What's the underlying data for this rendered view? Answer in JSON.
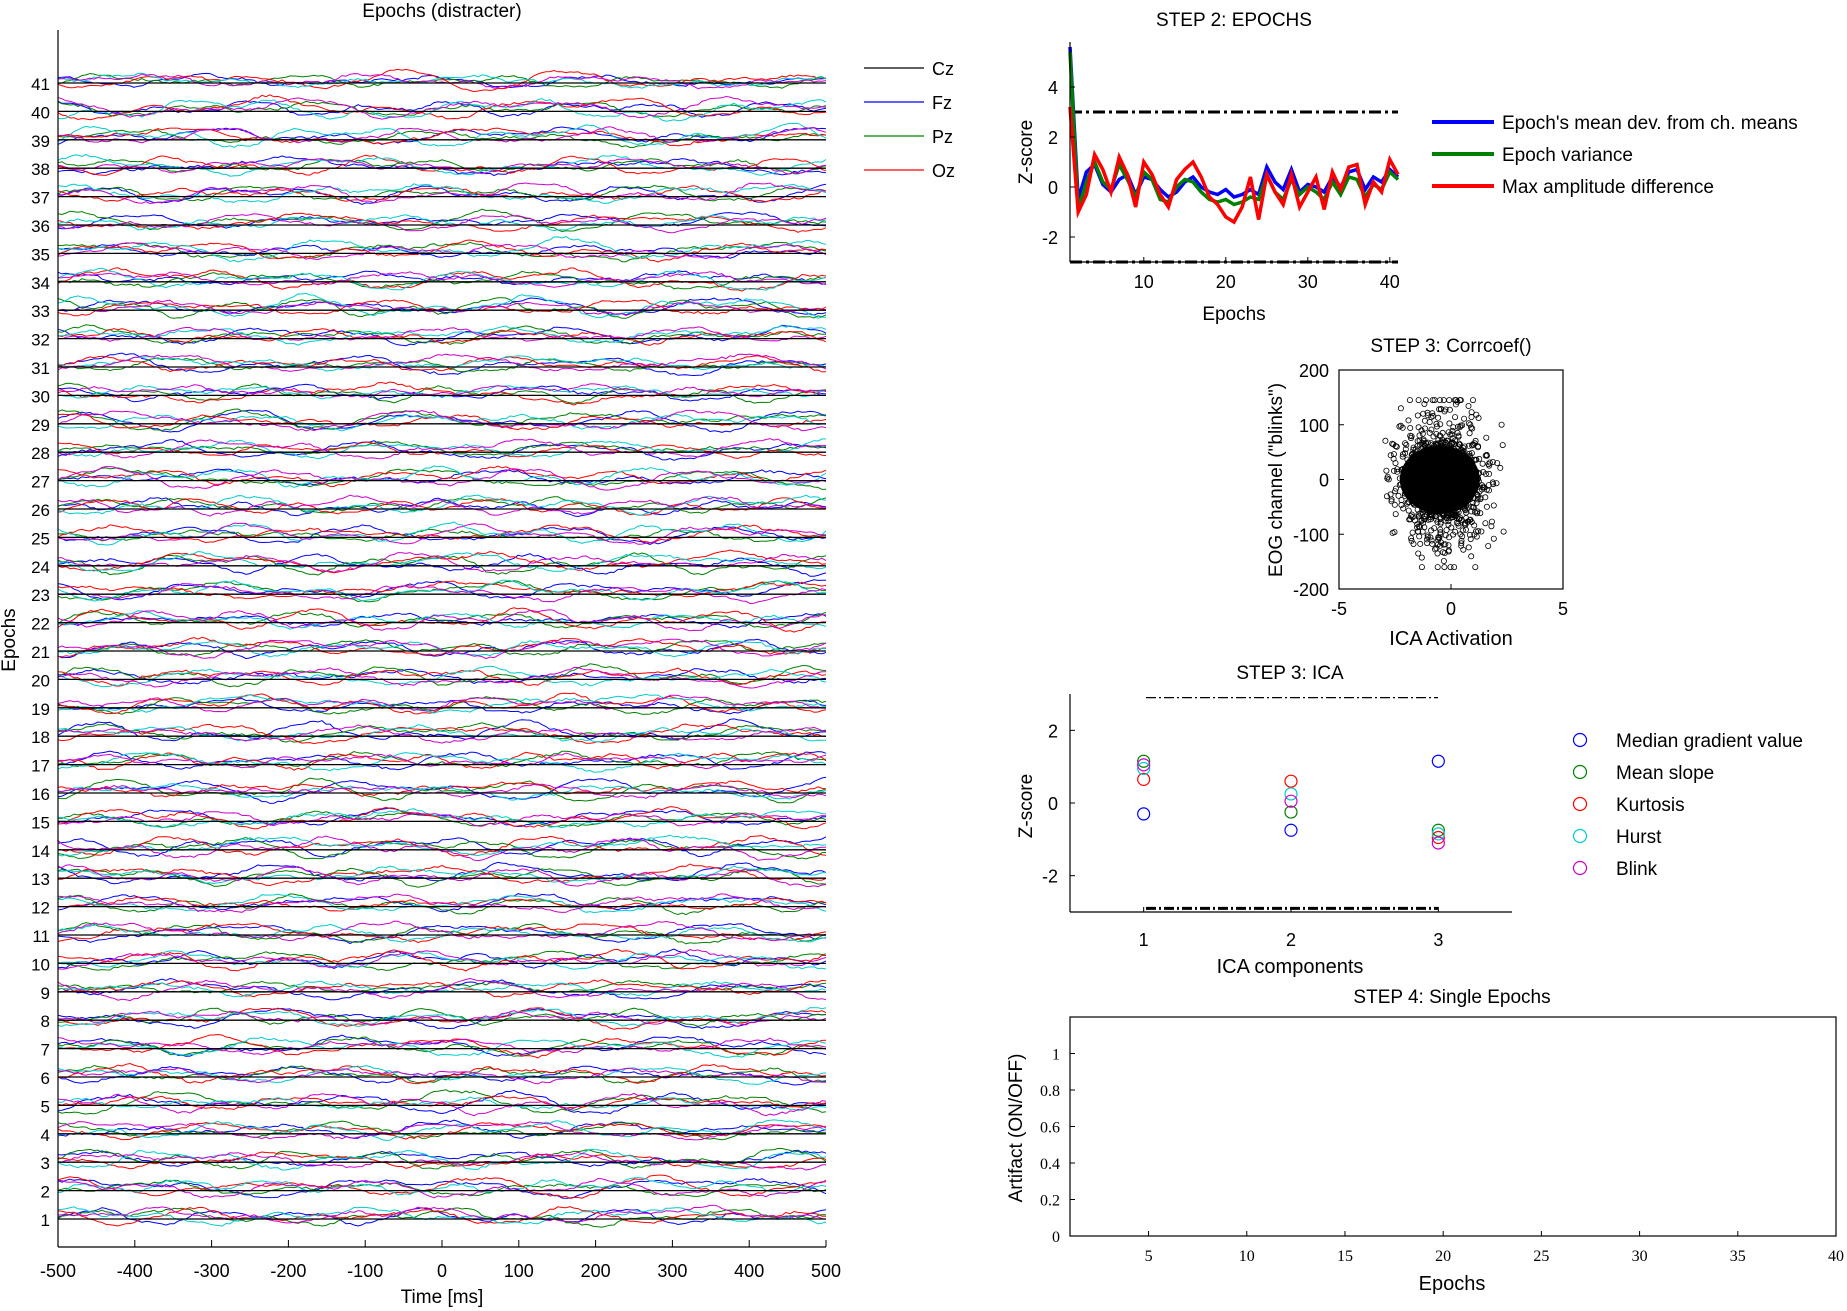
{
  "chart_data": [
    {
      "id": "epochs",
      "type": "line",
      "title": "Epochs (distracter)",
      "xlabel": "Time [ms]",
      "ylabel": "Epochs",
      "xlim": [
        -500,
        500
      ],
      "xticks": [
        -500,
        -400,
        -300,
        -200,
        -100,
        0,
        100,
        200,
        300,
        400,
        500
      ],
      "epoch_labels": [
        "1",
        "2",
        "3",
        "4",
        "5",
        "6",
        "7",
        "8",
        "9",
        "10",
        "11",
        "12",
        "13",
        "14",
        "15",
        "16",
        "17",
        "18",
        "19",
        "20",
        "21",
        "22",
        "23",
        "24",
        "25",
        "26",
        "27",
        "28",
        "29",
        "30",
        "31",
        "32",
        "33",
        "34",
        "35",
        "36",
        "37",
        "38",
        "39",
        "40",
        "41"
      ],
      "legend": [
        {
          "name": "Cz",
          "color": "#000000"
        },
        {
          "name": "Fz",
          "color": "#0000ff"
        },
        {
          "name": "Pz",
          "color": "#008000"
        },
        {
          "name": "Oz",
          "color": "#ff0000"
        }
      ],
      "trace_colors": [
        "#000000",
        "#0000ff",
        "#008000",
        "#ff0000",
        "#00cccc",
        "#cc00cc"
      ],
      "grid": false
    },
    {
      "id": "step2",
      "type": "line",
      "title": "STEP 2: EPOCHS",
      "xlabel": "Epochs",
      "ylabel": "Z-score",
      "xlim": [
        1,
        41
      ],
      "ylim": [
        -3.0,
        5.8
      ],
      "xticks": [
        10,
        20,
        30,
        40
      ],
      "yticks": [
        -2,
        0,
        2,
        4
      ],
      "thresholds": [
        3,
        -3
      ],
      "x": [
        1,
        2,
        3,
        4,
        5,
        6,
        7,
        8,
        9,
        10,
        11,
        12,
        13,
        14,
        15,
        16,
        17,
        18,
        19,
        20,
        21,
        22,
        23,
        24,
        25,
        26,
        27,
        28,
        29,
        30,
        31,
        32,
        33,
        34,
        35,
        36,
        37,
        38,
        39,
        40,
        41
      ],
      "series": [
        {
          "name": "Epoch's mean dev. from ch. means",
          "color": "#0000ff",
          "values": [
            5.6,
            -0.5,
            0.6,
            0.9,
            0.1,
            -0.2,
            0.3,
            0.5,
            -0.3,
            0.4,
            0.3,
            -0.1,
            -0.4,
            -0.2,
            0.2,
            0.4,
            0.0,
            -0.2,
            -0.3,
            -0.1,
            -0.4,
            -0.3,
            -0.1,
            -0.3,
            0.8,
            0.2,
            -0.1,
            0.7,
            -0.2,
            0.1,
            0.0,
            -0.2,
            0.4,
            0.0,
            0.6,
            0.7,
            -0.1,
            0.4,
            0.2,
            0.7,
            0.4
          ]
        },
        {
          "name": "Epoch variance",
          "color": "#008000",
          "values": [
            5.4,
            -0.9,
            0.2,
            1.0,
            0.2,
            -0.1,
            0.9,
            0.3,
            -0.4,
            0.6,
            0.3,
            -0.5,
            -0.6,
            0.0,
            0.3,
            0.2,
            -0.2,
            -0.5,
            -0.6,
            -0.5,
            -0.7,
            -0.6,
            -0.4,
            -0.5,
            0.5,
            -0.2,
            -0.5,
            0.3,
            -0.3,
            0.0,
            -0.2,
            -0.5,
            0.2,
            -0.3,
            0.4,
            0.3,
            -0.4,
            0.1,
            -0.1,
            0.6,
            0.3
          ]
        },
        {
          "name": "Max amplitude difference",
          "color": "#ff0000",
          "values": [
            3.2,
            -1.0,
            -0.3,
            1.3,
            0.7,
            -0.2,
            1.2,
            0.5,
            -0.8,
            1.0,
            0.5,
            -0.3,
            -0.8,
            0.3,
            0.7,
            1.0,
            0.4,
            -0.4,
            -0.7,
            -1.2,
            -1.4,
            -0.8,
            0.4,
            -1.3,
            0.5,
            -0.2,
            -0.7,
            0.5,
            -0.8,
            -0.2,
            0.4,
            -0.9,
            0.6,
            -0.1,
            0.8,
            0.9,
            -0.7,
            0.2,
            -0.2,
            1.1,
            0.5
          ]
        }
      ],
      "grid": false
    },
    {
      "id": "corr",
      "type": "scatter",
      "title": "STEP 3: Corrcoef()",
      "xlabel": "ICA Activation",
      "ylabel": "EOG channel (\"blinks\")",
      "xlim": [
        -5,
        5
      ],
      "ylim": [
        -200,
        200
      ],
      "xticks": [
        -5,
        0,
        5
      ],
      "yticks": [
        -200,
        -100,
        0,
        100,
        200
      ],
      "cluster": {
        "center": [
          -0.5,
          0
        ],
        "x_spread": [
          -3.2,
          3.4
        ],
        "y_spread": [
          -160,
          145
        ]
      },
      "grid": false
    },
    {
      "id": "ica",
      "type": "scatter",
      "title": "STEP 3: ICA",
      "xlabel": "ICA components",
      "ylabel": "Z-score",
      "xlim": [
        0.5,
        3.5
      ],
      "ylim": [
        -3,
        3
      ],
      "xticks": [
        1,
        2,
        3
      ],
      "yticks": [
        -2,
        0,
        2
      ],
      "thresholds": [
        2.9,
        -2.9
      ],
      "x": [
        1,
        2,
        3
      ],
      "series": [
        {
          "name": "Median gradient value",
          "color": "#0000ff",
          "values": [
            -0.3,
            -0.75,
            1.15
          ]
        },
        {
          "name": "Mean slope",
          "color": "#008000",
          "values": [
            1.15,
            -0.25,
            -0.75
          ]
        },
        {
          "name": "Kurtosis",
          "color": "#ff0000",
          "values": [
            0.65,
            0.6,
            -0.95
          ]
        },
        {
          "name": "Hurst",
          "color": "#00cccc",
          "values": [
            0.95,
            0.25,
            -0.85
          ]
        },
        {
          "name": "Blink",
          "color": "#cc00cc",
          "values": [
            1.05,
            0.05,
            -1.1
          ]
        }
      ],
      "grid": false
    },
    {
      "id": "step4",
      "type": "line",
      "title": "STEP 4: Single Epochs",
      "xlabel": "Epochs",
      "ylabel": "Artifact (ON/OFF)",
      "xlim": [
        1,
        40
      ],
      "ylim": [
        0,
        1.2
      ],
      "xticks": [
        5,
        10,
        15,
        20,
        25,
        30,
        35,
        40
      ],
      "yticks": [
        0,
        0.2,
        0.4,
        0.6,
        0.8,
        1
      ],
      "values": [],
      "grid": false
    }
  ]
}
